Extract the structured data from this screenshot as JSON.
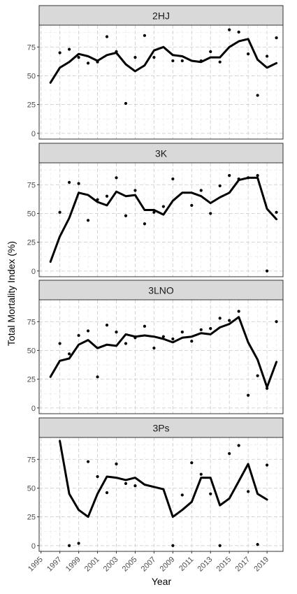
{
  "chart_data": {
    "type": "line",
    "xlabel": "Year",
    "ylabel": "Total Mortality Index (%)",
    "x_ticks": [
      "1995",
      "1997",
      "1999",
      "2001",
      "2003",
      "2005",
      "2007",
      "2009",
      "2011",
      "2013",
      "2015",
      "2017",
      "2019"
    ],
    "xlim": [
      1994.8,
      2020.7
    ],
    "ylim": [
      -5,
      94
    ],
    "y_ticks": [
      "0",
      "25",
      "50",
      "75"
    ],
    "grid": true,
    "panel_border_color": "#333333",
    "strip_fill": "#d9d9d9",
    "line_color": "#000000",
    "point_color": "#000000",
    "panels": [
      {
        "title": "2HJ",
        "line": {
          "x": [
            1996,
            1997,
            1998,
            1999,
            2000,
            2001,
            2002,
            2003,
            2004,
            2005,
            2006,
            2007,
            2008,
            2009,
            2010,
            2011,
            2012,
            2013,
            2014,
            2015,
            2016,
            2017,
            2018,
            2019,
            2020
          ],
          "y": [
            44,
            57,
            62,
            69,
            67,
            63,
            68,
            70,
            60,
            54,
            59,
            72,
            75,
            68,
            67,
            63,
            62,
            66,
            66,
            75,
            80,
            82,
            64,
            57,
            61
          ]
        },
        "points": {
          "x": [
            1997,
            1998,
            1999,
            2000,
            2001,
            2002,
            2003,
            2004,
            2005,
            2006,
            2007,
            2009,
            2010,
            2012,
            2013,
            2014,
            2015,
            2016,
            2017,
            2018,
            2019,
            2020
          ],
          "y": [
            70,
            73,
            66,
            61,
            62,
            84,
            71,
            26,
            66,
            85,
            66,
            63,
            63,
            63,
            71,
            62,
            90,
            88,
            69,
            33,
            67,
            83
          ]
        }
      },
      {
        "title": "3K",
        "line": {
          "x": [
            1996,
            1997,
            1998,
            1999,
            2000,
            2001,
            2002,
            2003,
            2004,
            2005,
            2006,
            2007,
            2008,
            2009,
            2010,
            2011,
            2012,
            2013,
            2014,
            2015,
            2016,
            2017,
            2018,
            2019,
            2020
          ],
          "y": [
            8,
            30,
            46,
            68,
            66,
            60,
            57,
            69,
            65,
            66,
            53,
            53,
            49,
            61,
            68,
            68,
            65,
            59,
            64,
            68,
            79,
            81,
            81,
            54,
            45
          ]
        },
        "points": {
          "x": [
            1997,
            1998,
            1999,
            2000,
            2001,
            2002,
            2003,
            2004,
            2005,
            2006,
            2007,
            2008,
            2009,
            2011,
            2012,
            2013,
            2014,
            2015,
            2016,
            2017,
            2018,
            2019,
            2020
          ],
          "y": [
            51,
            77,
            76,
            44,
            62,
            65,
            81,
            48,
            70,
            41,
            51,
            56,
            80,
            57,
            70,
            50,
            74,
            83,
            80,
            81,
            83,
            0,
            51
          ]
        }
      },
      {
        "title": "3LNO",
        "line": {
          "x": [
            1996,
            1997,
            1998,
            1999,
            2000,
            2001,
            2002,
            2003,
            2004,
            2005,
            2006,
            2007,
            2008,
            2009,
            2010,
            2011,
            2012,
            2013,
            2014,
            2015,
            2016,
            2017,
            2018,
            2019,
            2020
          ],
          "y": [
            27,
            41,
            43,
            55,
            59,
            52,
            55,
            54,
            64,
            62,
            63,
            62,
            60,
            57,
            61,
            62,
            65,
            64,
            70,
            73,
            79,
            57,
            42,
            18,
            40
          ]
        },
        "points": {
          "x": [
            1997,
            1998,
            1999,
            2000,
            2001,
            2002,
            2003,
            2004,
            2005,
            2006,
            2007,
            2008,
            2009,
            2010,
            2011,
            2012,
            2013,
            2014,
            2015,
            2016,
            2017,
            2018,
            2019,
            2020
          ],
          "y": [
            56,
            47,
            63,
            67,
            27,
            72,
            66,
            56,
            61,
            71,
            52,
            62,
            60,
            66,
            58,
            68,
            69,
            78,
            76,
            84,
            11,
            28,
            17,
            75
          ]
        }
      },
      {
        "title": "3Ps",
        "line": {
          "x": [
            1997,
            1998,
            1999,
            2000,
            2001,
            2002,
            2003,
            2004,
            2005,
            2006,
            2007,
            2008,
            2009,
            2010,
            2011,
            2012,
            2013,
            2014,
            2015,
            2016,
            2017,
            2018,
            2019
          ],
          "y": [
            91,
            45,
            31,
            25,
            45,
            60,
            59,
            57,
            59,
            53,
            51,
            49,
            25,
            31,
            38,
            59,
            59,
            35,
            41,
            56,
            71,
            45,
            40
          ]
        },
        "points": {
          "x": [
            1998,
            1999,
            2000,
            2001,
            2002,
            2003,
            2004,
            2005,
            2009,
            2010,
            2011,
            2012,
            2013,
            2014,
            2015,
            2016,
            2017,
            2018,
            2019
          ],
          "y": [
            0,
            2,
            73,
            60,
            46,
            71,
            54,
            52,
            0,
            44,
            72,
            62,
            45,
            0,
            80,
            87,
            47,
            1,
            70
          ]
        }
      }
    ]
  }
}
